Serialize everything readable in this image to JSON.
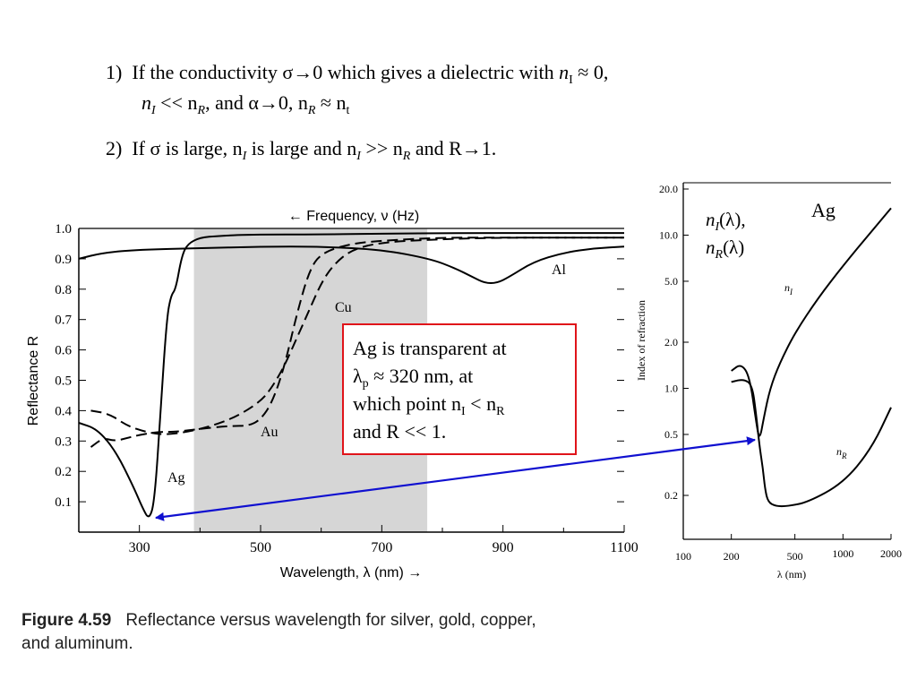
{
  "bullets": [
    {
      "num": "1)",
      "text_a": "If the conductivity σ→0 which gives a dielectric with ",
      "n": "n",
      "sub": "I",
      "text_b": " ≈ 0,"
    },
    {
      "line2_a": "n",
      "line2_sub_a": "I",
      "line2_b": " << n",
      "line2_sub_b": "R",
      "line2_c": ", and α→0, n",
      "line2_sub_c": "R",
      "line2_d": " ≈ n",
      "line2_sub_d": "t"
    },
    {
      "num": "2)",
      "text": "If σ is large,  n",
      "sub_a": "I",
      "text2": " is large and n",
      "sub_b": "I",
      "text3": " >> n",
      "sub_c": "R",
      "text4": " and R→1."
    }
  ],
  "callout": {
    "line1": "Ag is transparent at",
    "line2_a": "λ",
    "line2_sub": "p",
    "line2_b": " ≈ 320 nm, at",
    "line3_a": "which point n",
    "line3_sub_a": "I",
    "line3_b": " < n",
    "line3_sub_b": "R",
    "line4": "and R << 1."
  },
  "caption": {
    "label": "Figure 4.59",
    "text": "Reflectance versus wavelength for silver, gold, copper,",
    "text2": "and aluminum."
  },
  "colors": {
    "arrow": "#1010d0",
    "callout_border": "#e0141a",
    "shade": "#c8c8c8"
  },
  "chart_data": [
    {
      "type": "line",
      "title": "← Frequency,  ν (Hz)",
      "xlabel": "Wavelength,  λ (nm) →",
      "ylabel": "Reflectance R",
      "xlim": [
        200,
        1100
      ],
      "ylim": [
        0,
        1.0
      ],
      "xticks": [
        "300",
        "500",
        "700",
        "900",
        "1100"
      ],
      "xtick_values": [
        300,
        500,
        700,
        900,
        1100
      ],
      "yticks": [
        "1.0",
        "0.9",
        "0.8",
        "0.7",
        "0.6",
        "0.5",
        "0.4",
        "0.3",
        "0.2",
        "0.1"
      ],
      "ytick_values": [
        1.0,
        0.9,
        0.8,
        0.7,
        0.6,
        0.5,
        0.4,
        0.3,
        0.2,
        0.1
      ],
      "shaded_region": [
        390,
        775
      ],
      "series": [
        {
          "name": "Ag",
          "style": "solid",
          "x": [
            200,
            230,
            260,
            290,
            305,
            316,
            325,
            335,
            345,
            352,
            360,
            370,
            380,
            400,
            430,
            480,
            600,
            800,
            1000,
            1100
          ],
          "y": [
            0.36,
            0.34,
            0.27,
            0.15,
            0.08,
            0.04,
            0.1,
            0.4,
            0.7,
            0.78,
            0.8,
            0.91,
            0.95,
            0.97,
            0.975,
            0.98,
            0.98,
            0.985,
            0.985,
            0.985
          ]
        },
        {
          "name": "Au",
          "style": "dashed",
          "x": [
            220,
            240,
            260,
            280,
            300,
            330,
            360,
            400,
            450,
            480,
            500,
            520,
            540,
            560,
            580,
            600,
            650,
            700,
            800,
            900,
            1100
          ],
          "y": [
            0.28,
            0.31,
            0.3,
            0.31,
            0.32,
            0.33,
            0.33,
            0.34,
            0.35,
            0.35,
            0.37,
            0.43,
            0.55,
            0.72,
            0.86,
            0.92,
            0.95,
            0.96,
            0.97,
            0.97,
            0.97
          ]
        },
        {
          "name": "Cu",
          "style": "dashed",
          "x": [
            220,
            250,
            280,
            310,
            340,
            380,
            420,
            460,
            500,
            520,
            540,
            560,
            580,
            600,
            620,
            650,
            700,
            800,
            900,
            1100
          ],
          "y": [
            0.4,
            0.39,
            0.35,
            0.33,
            0.32,
            0.33,
            0.35,
            0.38,
            0.43,
            0.48,
            0.55,
            0.64,
            0.73,
            0.82,
            0.88,
            0.93,
            0.955,
            0.965,
            0.97,
            0.97
          ]
        },
        {
          "name": "Al",
          "style": "solid",
          "x": [
            200,
            240,
            300,
            400,
            500,
            600,
            700,
            780,
            820,
            850,
            870,
            890,
            910,
            950,
            1000,
            1050,
            1100
          ],
          "y": [
            0.9,
            0.92,
            0.93,
            0.935,
            0.94,
            0.94,
            0.93,
            0.9,
            0.87,
            0.84,
            0.82,
            0.82,
            0.84,
            0.89,
            0.92,
            0.935,
            0.94
          ]
        }
      ]
    },
    {
      "type": "line",
      "title": "Ag",
      "xlabel": "λ (nm)",
      "ylabel": "Index of refraction",
      "xscale": "log",
      "yscale": "log",
      "xlim": [
        100,
        2000
      ],
      "ylim": [
        0.13,
        20.0
      ],
      "xticks": [
        "100",
        "200",
        "500",
        "1000",
        "2000"
      ],
      "xtick_values": [
        100,
        200,
        500,
        1000,
        2000
      ],
      "yticks": [
        "20.0",
        "10.0",
        "5.0",
        "2.0",
        "1.0",
        "0.5",
        "0.2"
      ],
      "ytick_values": [
        20,
        10,
        5,
        2,
        1,
        0.5,
        0.2
      ],
      "annotation_n": "n",
      "annotation_sub_I": "I",
      "annotation_sub_R": "R",
      "annotation_lambda": "(λ),",
      "annotation_lambda2": "(λ)",
      "series": [
        {
          "name": "nI",
          "label_n": "n",
          "label_sub": "I",
          "x": [
            200,
            230,
            260,
            285,
            300,
            320,
            350,
            400,
            500,
            700,
            1000,
            1500,
            2000
          ],
          "y": [
            1.3,
            1.45,
            1.2,
            0.62,
            0.45,
            0.65,
            1.0,
            1.45,
            2.3,
            3.9,
            6.3,
            10.5,
            15
          ]
        },
        {
          "name": "nR",
          "label_n": "n",
          "label_sub": "R",
          "x": [
            200,
            240,
            270,
            285,
            300,
            315,
            325,
            340,
            380,
            450,
            600,
            1000,
            1500,
            2000
          ],
          "y": [
            1.1,
            1.15,
            1.05,
            0.7,
            0.42,
            0.3,
            0.22,
            0.18,
            0.17,
            0.17,
            0.18,
            0.24,
            0.4,
            0.75
          ]
        }
      ]
    }
  ]
}
